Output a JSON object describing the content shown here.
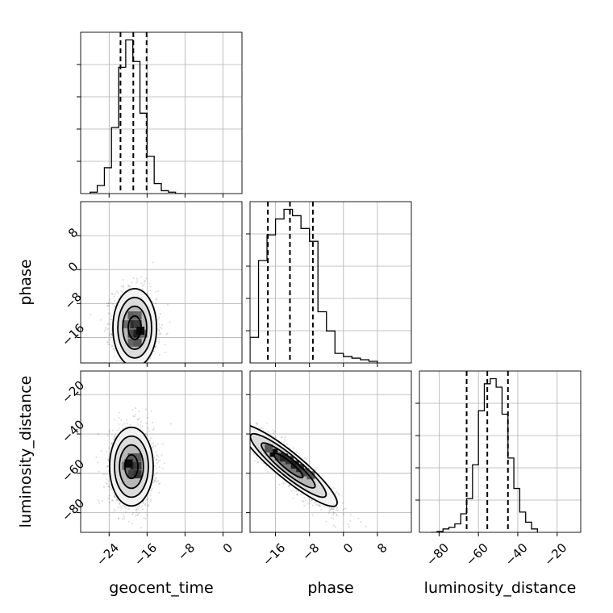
{
  "figure": {
    "grid": true
  },
  "params": [
    {
      "id": "geocent_time",
      "label": "geocent_time",
      "range": [
        -30,
        4
      ],
      "ticks": [
        -24,
        -16,
        -8,
        0
      ],
      "tick_labels": [
        "−24",
        "−16",
        "−8",
        "0"
      ]
    },
    {
      "id": "phase",
      "label": "phase",
      "range": [
        -22,
        16
      ],
      "ticks": [
        -16,
        -8,
        0,
        8
      ],
      "tick_labels": [
        "−16",
        "−8",
        "0",
        "8"
      ]
    },
    {
      "id": "luminosity_distance",
      "label": "luminosity_distance",
      "range": [
        -90,
        -8
      ],
      "ticks": [
        -80,
        -60,
        -40,
        -20
      ],
      "tick_labels": [
        "−80",
        "−60",
        "−40",
        "−20"
      ]
    }
  ],
  "chart_data": {
    "type": "corner",
    "histograms": [
      {
        "param": "geocent_time",
        "quantiles": [
          -21.6,
          -18.9,
          -16.1
        ],
        "bins_x": [
          -28,
          -26.5,
          -25,
          -23.5,
          -22,
          -20.5,
          -19,
          -17.5,
          -16,
          -14.5,
          -13,
          -11.5,
          -10,
          -8.5
        ],
        "counts": [
          0.5,
          2.8,
          9.0,
          23.0,
          44.0,
          53.5,
          46.0,
          28.0,
          13.0,
          3.5,
          1.0,
          0.5,
          0
        ]
      },
      {
        "param": "phase",
        "quantiles": [
          -17.8,
          -12.6,
          -7.2
        ],
        "bins_x": [
          -22,
          -20,
          -18,
          -16,
          -14,
          -12,
          -10,
          -8,
          -6,
          -4,
          -2,
          0,
          2,
          4,
          6,
          8
        ],
        "counts": [
          8,
          32,
          40,
          45,
          48,
          46,
          42,
          38,
          16,
          10,
          3,
          2,
          1.5,
          1,
          0.5
        ]
      },
      {
        "param": "luminosity_distance",
        "quantiles": [
          -66,
          -55.5,
          -45
        ],
        "bins_x": [
          -84,
          -81,
          -78,
          -75,
          -72,
          -69,
          -66,
          -63,
          -60,
          -57,
          -54,
          -51,
          -48,
          -45,
          -42,
          -39,
          -36,
          -33,
          -30
        ],
        "counts": [
          0,
          0.5,
          2,
          3,
          5,
          11,
          20,
          40,
          72,
          88,
          91,
          86,
          70,
          44,
          26,
          12,
          6,
          2
        ]
      }
    ],
    "pairs": [
      {
        "x": "geocent_time",
        "y": "phase",
        "center": [
          -18.6,
          -13.7
        ],
        "sigma": [
          2.3,
          4.6
        ],
        "rho": -0.05,
        "density_cells": [
          [
            -19.2,
            -17.2,
            0.35
          ],
          [
            -18.0,
            -17.2,
            0.45
          ],
          [
            -19.2,
            -15.1,
            0.6
          ],
          [
            -18.0,
            -15.1,
            0.85
          ],
          [
            -19.2,
            -12.9,
            0.75
          ],
          [
            -18.0,
            -12.9,
            0.65
          ],
          [
            -20.4,
            -12.9,
            0.3
          ],
          [
            -16.8,
            -15.1,
            0.35
          ],
          [
            -19.2,
            -10.8,
            0.4
          ],
          [
            -18.0,
            -10.8,
            0.35
          ],
          [
            -17.4,
            -14.4,
            1.0
          ]
        ]
      },
      {
        "x": "geocent_time",
        "y": "luminosity_distance",
        "center": [
          -19.3,
          -56.6
        ],
        "sigma": [
          2.3,
          10.0
        ],
        "rho": 0.0,
        "density_cells": [
          [
            -19.2,
            -60.5,
            0.6
          ],
          [
            -18.0,
            -60.5,
            0.7
          ],
          [
            -19.2,
            -56.2,
            0.8
          ],
          [
            -18.0,
            -56.2,
            0.65
          ],
          [
            -20.4,
            -56.2,
            0.35
          ],
          [
            -19.2,
            -51.9,
            0.45
          ],
          [
            -18.0,
            -51.9,
            0.4
          ],
          [
            -19.9,
            -55.0,
            1.0
          ]
        ]
      },
      {
        "x": "phase",
        "y": "luminosity_distance",
        "center": [
          -13,
          -56
        ],
        "sigma": [
          5.6,
          10.8
        ],
        "rho": -0.92,
        "density_cells": [
          [
            -16.4,
            -49.6,
            1.0
          ],
          [
            -15.2,
            -51.4,
            0.6
          ],
          [
            -14.0,
            -52.0,
            0.8
          ],
          [
            -12.7,
            -53.3,
            0.7
          ],
          [
            -11.4,
            -55.6,
            0.85
          ],
          [
            -10.2,
            -57.3,
            0.7
          ],
          [
            -9.0,
            -59.5,
            0.55
          ],
          [
            -17.6,
            -47.4,
            0.45
          ],
          [
            -7.7,
            -61.0,
            0.4
          ]
        ]
      }
    ]
  }
}
